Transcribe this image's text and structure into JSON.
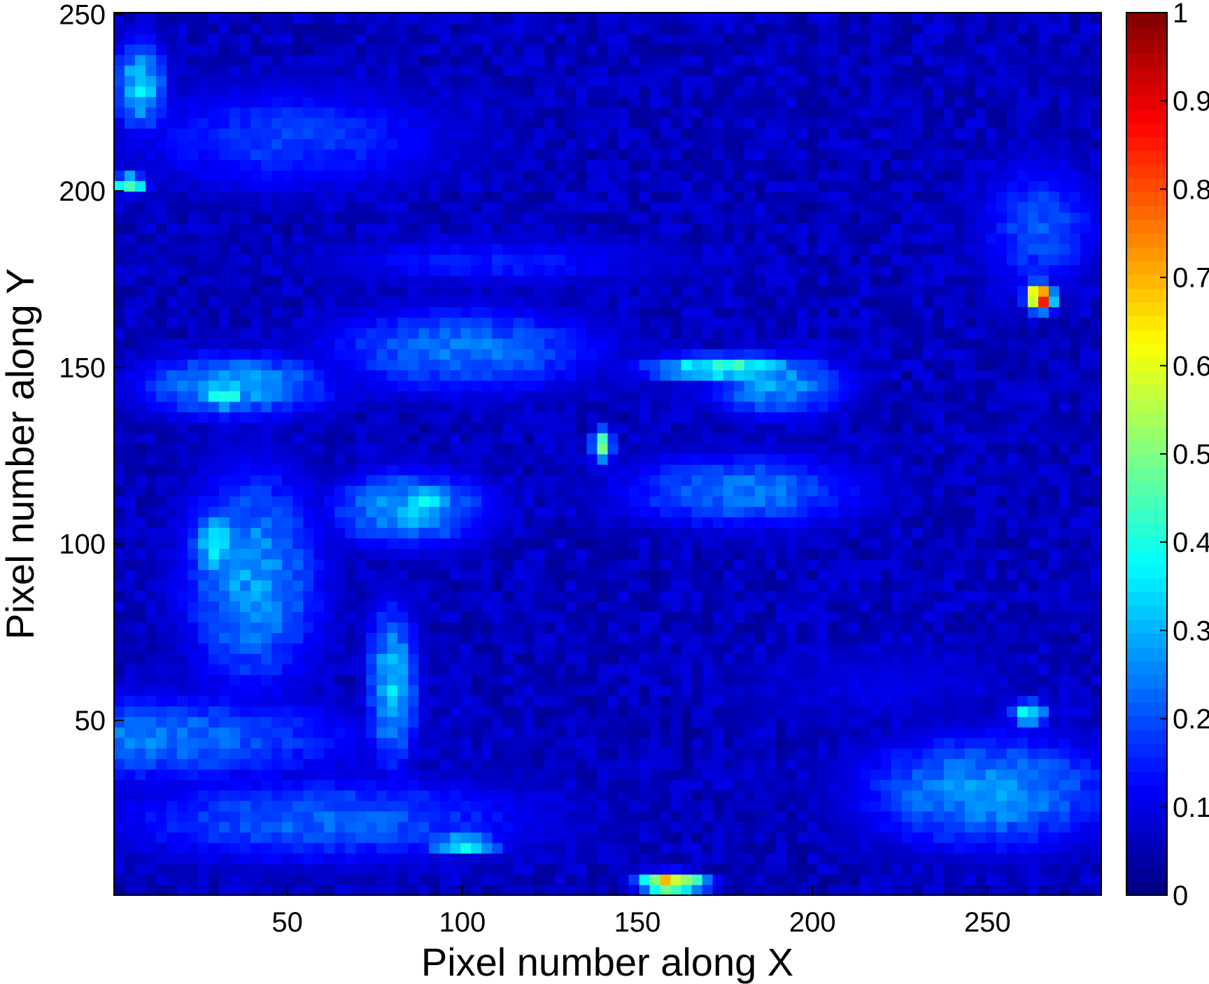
{
  "chart_data": {
    "type": "heatmap",
    "title": "",
    "xlabel": "Pixel number along X",
    "ylabel": "Pixel number along Y",
    "xlim": [
      0.5,
      282.5
    ],
    "ylim": [
      0.5,
      250.5
    ],
    "x_ticks": [
      50,
      100,
      150,
      200,
      250
    ],
    "y_ticks": [
      50,
      100,
      150,
      200,
      250
    ],
    "colorbar": {
      "min": 0,
      "max": 1,
      "ticks": [
        0,
        0.1,
        0.2,
        0.3,
        0.4,
        0.5,
        0.6,
        0.7,
        0.8,
        0.9,
        1
      ],
      "tick_labels": [
        "0",
        "0.1",
        "0.2",
        "0.3",
        "0.4",
        "0.5",
        "0.6",
        "0.7",
        "0.8",
        "0.9",
        "1"
      ],
      "colormap": "jet",
      "levels": 64
    },
    "grid": false,
    "background_value": 0.02,
    "regions": [
      {
        "x": 10,
        "y": 45,
        "rx": 70,
        "ry": 14,
        "v": 0.24
      },
      {
        "x": 60,
        "y": 22,
        "rx": 70,
        "ry": 14,
        "v": 0.22
      },
      {
        "x": 250,
        "y": 30,
        "rx": 40,
        "ry": 18,
        "v": 0.28
      },
      {
        "x": 262,
        "y": 52,
        "rx": 6,
        "ry": 4,
        "v": 0.38
      },
      {
        "x": 40,
        "y": 90,
        "rx": 22,
        "ry": 35,
        "v": 0.28
      },
      {
        "x": 30,
        "y": 100,
        "rx": 8,
        "ry": 12,
        "v": 0.36
      },
      {
        "x": 80,
        "y": 60,
        "rx": 8,
        "ry": 25,
        "v": 0.32
      },
      {
        "x": 85,
        "y": 110,
        "rx": 25,
        "ry": 12,
        "v": 0.3
      },
      {
        "x": 90,
        "y": 112,
        "rx": 8,
        "ry": 6,
        "v": 0.4
      },
      {
        "x": 35,
        "y": 145,
        "rx": 30,
        "ry": 10,
        "v": 0.3
      },
      {
        "x": 32,
        "y": 142,
        "rx": 6,
        "ry": 4,
        "v": 0.45
      },
      {
        "x": 100,
        "y": 155,
        "rx": 45,
        "ry": 14,
        "v": 0.24
      },
      {
        "x": 180,
        "y": 115,
        "rx": 40,
        "ry": 12,
        "v": 0.24
      },
      {
        "x": 190,
        "y": 145,
        "rx": 22,
        "ry": 10,
        "v": 0.28
      },
      {
        "x": 175,
        "y": 150,
        "rx": 25,
        "ry": 4,
        "v": 0.42
      },
      {
        "x": 50,
        "y": 215,
        "rx": 55,
        "ry": 18,
        "v": 0.18
      },
      {
        "x": 8,
        "y": 230,
        "rx": 8,
        "ry": 14,
        "v": 0.34
      },
      {
        "x": 265,
        "y": 190,
        "rx": 20,
        "ry": 22,
        "v": 0.2
      },
      {
        "x": 265,
        "y": 170,
        "rx": 4,
        "ry": 4,
        "v": 0.9
      },
      {
        "x": 140,
        "y": 128,
        "rx": 3,
        "ry": 5,
        "v": 0.55
      },
      {
        "x": 100,
        "y": 15,
        "rx": 12,
        "ry": 3,
        "v": 0.4
      },
      {
        "x": 160,
        "y": 4,
        "rx": 10,
        "ry": 3,
        "v": 0.7
      },
      {
        "x": 5,
        "y": 202,
        "rx": 5,
        "ry": 3,
        "v": 0.5
      },
      {
        "x": 110,
        "y": 180,
        "rx": 60,
        "ry": 8,
        "v": 0.15
      },
      {
        "x": 220,
        "y": 60,
        "rx": 50,
        "ry": 15,
        "v": 0.1
      }
    ]
  }
}
